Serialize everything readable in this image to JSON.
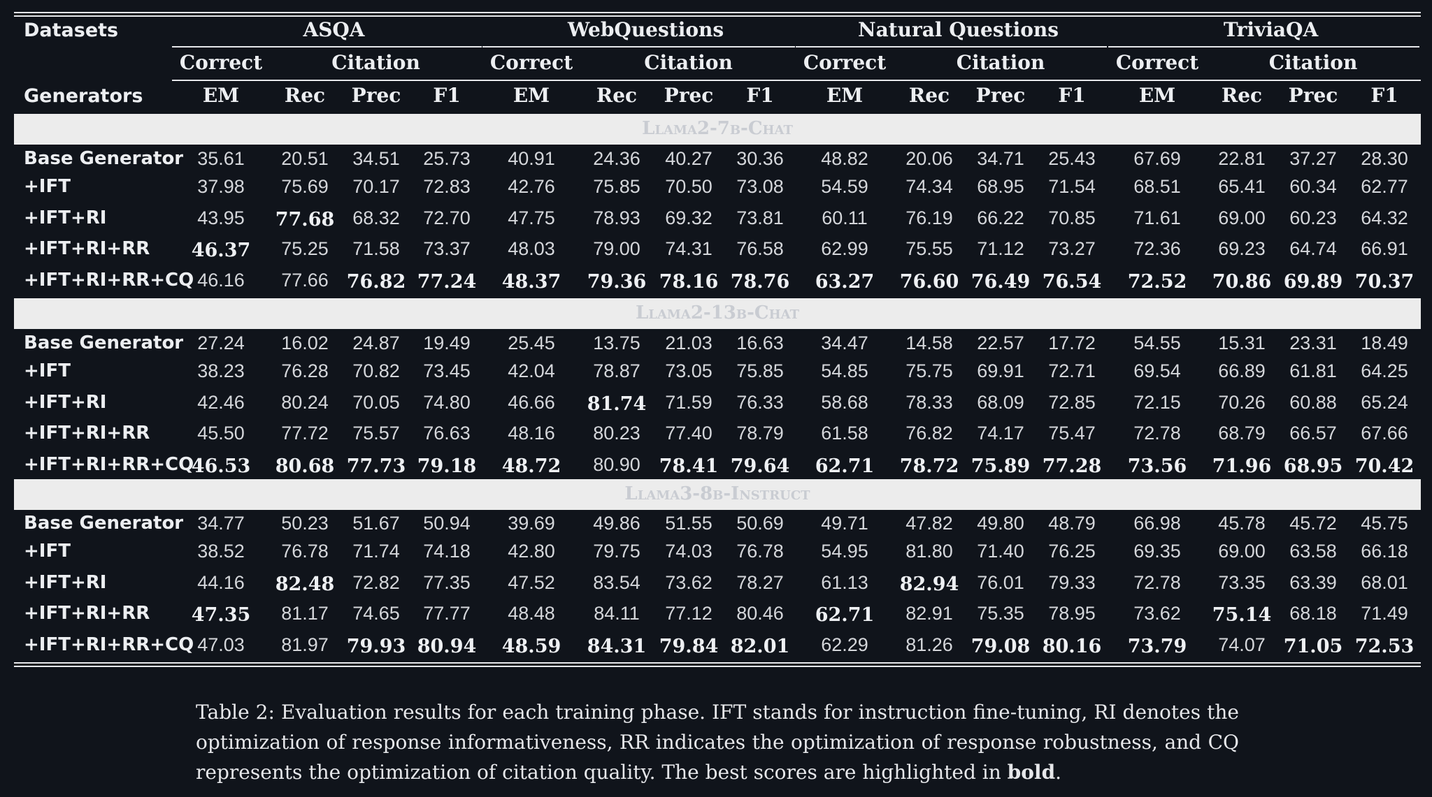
{
  "header": {
    "datasets_label": "Datasets",
    "generators_label": "Generators",
    "datasets": [
      "ASQA",
      "WebQuestions",
      "Natural Questions",
      "TriviaQA"
    ],
    "groups": [
      "Correct",
      "Citation"
    ],
    "metrics": [
      "EM",
      "Rec",
      "Prec",
      "F1"
    ]
  },
  "sections": [
    {
      "title": "Llama2-7b-Chat",
      "rows": [
        {
          "label": "Base Generator",
          "values": [
            "35.61",
            "20.51",
            "34.51",
            "25.73",
            "40.91",
            "24.36",
            "40.27",
            "30.36",
            "48.82",
            "20.06",
            "34.71",
            "25.43",
            "67.69",
            "22.81",
            "37.27",
            "28.30"
          ],
          "bold": []
        },
        {
          "label": "+IFT",
          "values": [
            "37.98",
            "75.69",
            "70.17",
            "72.83",
            "42.76",
            "75.85",
            "70.50",
            "73.08",
            "54.59",
            "74.34",
            "68.95",
            "71.54",
            "68.51",
            "65.41",
            "60.34",
            "62.77"
          ],
          "bold": []
        },
        {
          "label": "+IFT+RI",
          "values": [
            "43.95",
            "77.68",
            "68.32",
            "72.70",
            "47.75",
            "78.93",
            "69.32",
            "73.81",
            "60.11",
            "76.19",
            "66.22",
            "70.85",
            "71.61",
            "69.00",
            "60.23",
            "64.32"
          ],
          "bold": [
            1
          ]
        },
        {
          "label": "+IFT+RI+RR",
          "values": [
            "46.37",
            "75.25",
            "71.58",
            "73.37",
            "48.03",
            "79.00",
            "74.31",
            "76.58",
            "62.99",
            "75.55",
            "71.12",
            "73.27",
            "72.36",
            "69.23",
            "64.74",
            "66.91"
          ],
          "bold": [
            0
          ]
        },
        {
          "label": "+IFT+RI+RR+CQ",
          "values": [
            "46.16",
            "77.66",
            "76.82",
            "77.24",
            "48.37",
            "79.36",
            "78.16",
            "78.76",
            "63.27",
            "76.60",
            "76.49",
            "76.54",
            "72.52",
            "70.86",
            "69.89",
            "70.37"
          ],
          "bold": [
            2,
            3,
            4,
            5,
            6,
            7,
            8,
            9,
            10,
            11,
            12,
            13,
            14,
            15
          ]
        }
      ]
    },
    {
      "title": "Llama2-13b-Chat",
      "rows": [
        {
          "label": "Base Generator",
          "values": [
            "27.24",
            "16.02",
            "24.87",
            "19.49",
            "25.45",
            "13.75",
            "21.03",
            "16.63",
            "34.47",
            "14.58",
            "22.57",
            "17.72",
            "54.55",
            "15.31",
            "23.31",
            "18.49"
          ],
          "bold": []
        },
        {
          "label": "+IFT",
          "values": [
            "38.23",
            "76.28",
            "70.82",
            "73.45",
            "42.04",
            "78.87",
            "73.05",
            "75.85",
            "54.85",
            "75.75",
            "69.91",
            "72.71",
            "69.54",
            "66.89",
            "61.81",
            "64.25"
          ],
          "bold": []
        },
        {
          "label": "+IFT+RI",
          "values": [
            "42.46",
            "80.24",
            "70.05",
            "74.80",
            "46.66",
            "81.74",
            "71.59",
            "76.33",
            "58.68",
            "78.33",
            "68.09",
            "72.85",
            "72.15",
            "70.26",
            "60.88",
            "65.24"
          ],
          "bold": [
            5
          ]
        },
        {
          "label": "+IFT+RI+RR",
          "values": [
            "45.50",
            "77.72",
            "75.57",
            "76.63",
            "48.16",
            "80.23",
            "77.40",
            "78.79",
            "61.58",
            "76.82",
            "74.17",
            "75.47",
            "72.78",
            "68.79",
            "66.57",
            "67.66"
          ],
          "bold": []
        },
        {
          "label": "+IFT+RI+RR+CQ",
          "values": [
            "46.53",
            "80.68",
            "77.73",
            "79.18",
            "48.72",
            "80.90",
            "78.41",
            "79.64",
            "62.71",
            "78.72",
            "75.89",
            "77.28",
            "73.56",
            "71.96",
            "68.95",
            "70.42"
          ],
          "bold": [
            0,
            1,
            2,
            3,
            4,
            6,
            7,
            8,
            9,
            10,
            11,
            12,
            13,
            14,
            15
          ]
        }
      ]
    },
    {
      "title": "Llama3-8b-Instruct",
      "rows": [
        {
          "label": "Base Generator",
          "values": [
            "34.77",
            "50.23",
            "51.67",
            "50.94",
            "39.69",
            "49.86",
            "51.55",
            "50.69",
            "49.71",
            "47.82",
            "49.80",
            "48.79",
            "66.98",
            "45.78",
            "45.72",
            "45.75"
          ],
          "bold": []
        },
        {
          "label": "+IFT",
          "values": [
            "38.52",
            "76.78",
            "71.74",
            "74.18",
            "42.80",
            "79.75",
            "74.03",
            "76.78",
            "54.95",
            "81.80",
            "71.40",
            "76.25",
            "69.35",
            "69.00",
            "63.58",
            "66.18"
          ],
          "bold": []
        },
        {
          "label": "+IFT+RI",
          "values": [
            "44.16",
            "82.48",
            "72.82",
            "77.35",
            "47.52",
            "83.54",
            "73.62",
            "78.27",
            "61.13",
            "82.94",
            "76.01",
            "79.33",
            "72.78",
            "73.35",
            "63.39",
            "68.01"
          ],
          "bold": [
            1,
            9
          ]
        },
        {
          "label": "+IFT+RI+RR",
          "values": [
            "47.35",
            "81.17",
            "74.65",
            "77.77",
            "48.48",
            "84.11",
            "77.12",
            "80.46",
            "62.71",
            "82.91",
            "75.35",
            "78.95",
            "73.62",
            "75.14",
            "68.18",
            "71.49"
          ],
          "bold": [
            0,
            8,
            13
          ]
        },
        {
          "label": "+IFT+RI+RR+CQ",
          "values": [
            "47.03",
            "81.97",
            "79.93",
            "80.94",
            "48.59",
            "84.31",
            "79.84",
            "82.01",
            "62.29",
            "81.26",
            "79.08",
            "80.16",
            "73.79",
            "74.07",
            "71.05",
            "72.53"
          ],
          "bold": [
            2,
            3,
            4,
            5,
            6,
            7,
            10,
            11,
            12,
            14,
            15
          ]
        }
      ]
    }
  ],
  "caption": {
    "prefix": "Table 2: Evaluation results for each training phase. IFT stands for instruction fine-tuning, RI denotes the optimization of response informativeness, RR indicates the optimization of response robustness, and CQ represents the optimization of citation quality. The best scores are highlighted in ",
    "bold_word": "bold",
    "suffix": "."
  }
}
